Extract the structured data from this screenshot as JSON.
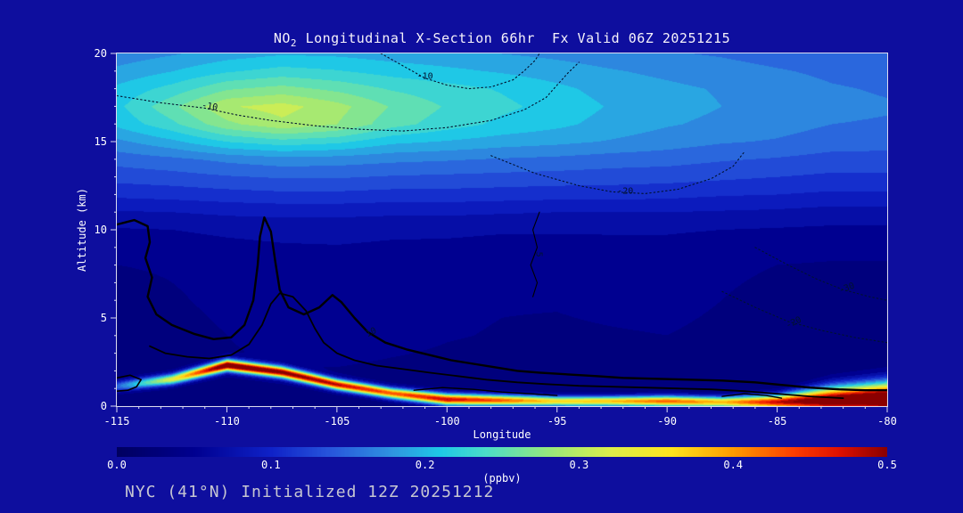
{
  "page": {
    "background": "#0e0e9e"
  },
  "title": {
    "prefix": "NO",
    "sub": "2",
    "rest": " Longitudinal X-Section 66hr  Fx Valid 06Z 20251215"
  },
  "footer": {
    "text": "NYC (41°N) Initialized 12Z 20251212"
  },
  "colors": {
    "frame": "#dcdcf0",
    "axis_text": "#ffffff",
    "title_text": "#f6f2fa",
    "footer_text": "#c6c6d2",
    "contour_solid": "#000000",
    "contour_dotted": "#001230",
    "contour_label": "#001230"
  },
  "chart_data": {
    "type": "heatmap",
    "title": "NO2 Longitudinal X-Section 66hr  Fx Valid 06Z 20251215",
    "xlabel": "Longitude",
    "ylabel": "Altitude (km)",
    "x_range": [
      -115,
      -80
    ],
    "y_range": [
      0,
      20
    ],
    "x_ticks": [
      -115,
      -110,
      -105,
      -100,
      -95,
      -90,
      -85,
      -80
    ],
    "y_ticks": [
      0,
      5,
      10,
      15,
      20
    ],
    "x_minor_step": 1,
    "y_minor_step": 1,
    "colorbar": {
      "min": 0.0,
      "max": 0.5,
      "tick_labels": [
        "0.0",
        "0.1",
        "0.2",
        "0.3",
        "0.4",
        "0.5"
      ],
      "unit_label": "(ppbv)"
    },
    "colormap": [
      [
        0.0,
        "#000060"
      ],
      [
        0.05,
        "#000090"
      ],
      [
        0.1,
        "#0f22c8"
      ],
      [
        0.14,
        "#2858dc"
      ],
      [
        0.18,
        "#2f96e0"
      ],
      [
        0.21,
        "#1ec8e6"
      ],
      [
        0.24,
        "#4cdcc8"
      ],
      [
        0.28,
        "#96e87d"
      ],
      [
        0.32,
        "#dcee4b"
      ],
      [
        0.36,
        "#ffe41e"
      ],
      [
        0.4,
        "#ff9c00"
      ],
      [
        0.44,
        "#ff3c00"
      ],
      [
        0.47,
        "#dc0f00"
      ],
      [
        0.5,
        "#8a0000"
      ]
    ],
    "quantize_step": 0.02,
    "field": {
      "lons": [
        -115,
        -112.5,
        -110,
        -107.5,
        -105,
        -102.5,
        -100,
        -97.5,
        -95,
        -92.5,
        -90,
        -87.5,
        -85,
        -82.5,
        -80
      ],
      "alts": [
        0,
        2,
        4,
        6,
        8,
        10,
        11,
        12,
        13,
        14,
        15,
        16,
        17,
        18,
        19,
        20
      ],
      "values": [
        [
          0.03,
          0.03,
          0.03,
          0.03,
          0.03,
          0.03,
          0.03,
          0.03,
          0.03,
          0.03,
          0.03,
          0.03,
          0.03,
          0.03,
          0.03
        ],
        [
          0.03,
          0.032,
          0.035,
          0.038,
          0.038,
          0.034,
          0.032,
          0.03,
          0.03,
          0.03,
          0.03,
          0.03,
          0.03,
          0.03,
          0.03
        ],
        [
          0.03,
          0.034,
          0.04,
          0.05,
          0.058,
          0.05,
          0.042,
          0.038,
          0.036,
          0.038,
          0.04,
          0.034,
          0.03,
          0.03,
          0.03
        ],
        [
          0.032,
          0.038,
          0.044,
          0.052,
          0.058,
          0.052,
          0.046,
          0.042,
          0.042,
          0.046,
          0.048,
          0.04,
          0.034,
          0.032,
          0.032
        ],
        [
          0.04,
          0.042,
          0.046,
          0.05,
          0.052,
          0.05,
          0.048,
          0.046,
          0.046,
          0.048,
          0.048,
          0.044,
          0.04,
          0.038,
          0.038
        ],
        [
          0.058,
          0.06,
          0.064,
          0.066,
          0.066,
          0.064,
          0.064,
          0.062,
          0.062,
          0.062,
          0.062,
          0.06,
          0.058,
          0.056,
          0.056
        ],
        [
          0.078,
          0.08,
          0.084,
          0.086,
          0.086,
          0.084,
          0.084,
          0.082,
          0.08,
          0.08,
          0.08,
          0.078,
          0.076,
          0.072,
          0.072
        ],
        [
          0.105,
          0.108,
          0.112,
          0.115,
          0.115,
          0.112,
          0.112,
          0.11,
          0.108,
          0.108,
          0.106,
          0.102,
          0.1,
          0.096,
          0.096
        ],
        [
          0.128,
          0.132,
          0.138,
          0.142,
          0.142,
          0.138,
          0.136,
          0.134,
          0.132,
          0.13,
          0.128,
          0.124,
          0.12,
          0.116,
          0.116
        ],
        [
          0.148,
          0.155,
          0.165,
          0.172,
          0.17,
          0.165,
          0.162,
          0.158,
          0.155,
          0.15,
          0.148,
          0.142,
          0.138,
          0.132,
          0.132
        ],
        [
          0.175,
          0.195,
          0.22,
          0.232,
          0.225,
          0.205,
          0.198,
          0.19,
          0.185,
          0.178,
          0.17,
          0.162,
          0.158,
          0.15,
          0.148
        ],
        [
          0.205,
          0.235,
          0.275,
          0.295,
          0.28,
          0.248,
          0.23,
          0.215,
          0.205,
          0.192,
          0.182,
          0.175,
          0.168,
          0.16,
          0.158
        ],
        [
          0.215,
          0.255,
          0.298,
          0.308,
          0.288,
          0.258,
          0.238,
          0.225,
          0.212,
          0.198,
          0.188,
          0.18,
          0.172,
          0.165,
          0.162
        ],
        [
          0.205,
          0.228,
          0.258,
          0.268,
          0.255,
          0.238,
          0.228,
          0.218,
          0.205,
          0.192,
          0.185,
          0.178,
          0.17,
          0.162,
          0.158
        ],
        [
          0.185,
          0.2,
          0.218,
          0.228,
          0.222,
          0.212,
          0.205,
          0.198,
          0.19,
          0.182,
          0.175,
          0.168,
          0.162,
          0.156,
          0.152
        ],
        [
          0.168,
          0.178,
          0.19,
          0.198,
          0.196,
          0.19,
          0.186,
          0.18,
          0.175,
          0.168,
          0.162,
          0.158,
          0.152,
          0.148,
          0.144
        ]
      ]
    },
    "surface": {
      "lons": [
        -115,
        -112.5,
        -110,
        -107.5,
        -105,
        -102.5,
        -100,
        -97.5,
        -95,
        -92.5,
        -90,
        -87.5,
        -85,
        -82.5,
        -80
      ],
      "terrain": [
        1.1,
        1.5,
        2.3,
        1.9,
        1.2,
        0.7,
        0.35,
        0.3,
        0.25,
        0.25,
        0.25,
        0.2,
        0.2,
        0.3,
        0.4
      ],
      "peak": [
        0.12,
        0.3,
        0.52,
        0.48,
        0.45,
        0.4,
        0.45,
        0.4,
        0.33,
        0.35,
        0.4,
        0.35,
        0.45,
        0.52,
        0.55
      ],
      "sigma": [
        0.3,
        0.3,
        0.32,
        0.32,
        0.3,
        0.3,
        0.32,
        0.3,
        0.28,
        0.28,
        0.3,
        0.3,
        0.4,
        0.75,
        0.9
      ]
    },
    "contours": {
      "solid": [
        {
          "width": 2.4,
          "points": [
            [
              -115,
              10.3
            ],
            [
              -114.2,
              10.55
            ],
            [
              -113.6,
              10.2
            ],
            [
              -113.5,
              9.3
            ],
            [
              -113.7,
              8.4
            ],
            [
              -113.4,
              7.3
            ],
            [
              -113.6,
              6.2
            ],
            [
              -113.2,
              5.2
            ],
            [
              -112.5,
              4.6
            ],
            [
              -111.5,
              4.1
            ],
            [
              -110.6,
              3.8
            ],
            [
              -109.8,
              3.9
            ],
            [
              -109.2,
              4.6
            ],
            [
              -108.8,
              6
            ],
            [
              -108.6,
              8
            ],
            [
              -108.5,
              9.6
            ],
            [
              -108.3,
              10.7
            ],
            [
              -108,
              9.9
            ],
            [
              -107.8,
              8.2
            ],
            [
              -107.6,
              6.6
            ],
            [
              -107.2,
              5.6
            ],
            [
              -106.5,
              5.2
            ],
            [
              -105.8,
              5.6
            ],
            [
              -105.2,
              6.3
            ],
            [
              -104.8,
              5.9
            ],
            [
              -104.2,
              5
            ],
            [
              -103.6,
              4.2
            ],
            [
              -102.8,
              3.6
            ],
            [
              -101.8,
              3.2
            ],
            [
              -100.8,
              2.9
            ],
            [
              -99.8,
              2.6
            ],
            [
              -98.8,
              2.4
            ],
            [
              -97.8,
              2.2
            ],
            [
              -96.8,
              2
            ],
            [
              -95.8,
              1.9
            ],
            [
              -94.5,
              1.8
            ],
            [
              -93.2,
              1.7
            ],
            [
              -92,
              1.6
            ],
            [
              -90.5,
              1.55
            ],
            [
              -89,
              1.5
            ],
            [
              -87.5,
              1.45
            ],
            [
              -86,
              1.35
            ],
            [
              -84.8,
              1.2
            ],
            [
              -83.5,
              1.05
            ],
            [
              -82.2,
              0.95
            ],
            [
              -81,
              0.9
            ],
            [
              -80,
              0.9
            ]
          ]
        },
        {
          "width": 1.8,
          "points": [
            [
              -113.5,
              3.4
            ],
            [
              -112.8,
              3
            ],
            [
              -111.8,
              2.8
            ],
            [
              -110.8,
              2.7
            ],
            [
              -109.8,
              2.9
            ],
            [
              -109,
              3.5
            ],
            [
              -108.4,
              4.6
            ],
            [
              -108,
              5.8
            ],
            [
              -107.6,
              6.4
            ],
            [
              -107,
              6.2
            ],
            [
              -106.4,
              5.4
            ],
            [
              -106,
              4.4
            ],
            [
              -105.6,
              3.6
            ],
            [
              -105,
              3
            ],
            [
              -104.2,
              2.6
            ],
            [
              -103.2,
              2.3
            ],
            [
              -102,
              2.1
            ],
            [
              -100.8,
              1.9
            ],
            [
              -99.5,
              1.7
            ],
            [
              -98.2,
              1.5
            ],
            [
              -96.8,
              1.35
            ],
            [
              -95.5,
              1.25
            ],
            [
              -94,
              1.15
            ],
            [
              -92.5,
              1.1
            ],
            [
              -91,
              1.05
            ],
            [
              -89.5,
              1
            ],
            [
              -88,
              0.95
            ],
            [
              -86.5,
              0.85
            ],
            [
              -85,
              0.7
            ],
            [
              -83.5,
              0.55
            ],
            [
              -82,
              0.45
            ]
          ]
        },
        {
          "width": 1.6,
          "points": [
            [
              -115,
              1.6
            ],
            [
              -114.4,
              1.75
            ],
            [
              -113.9,
              1.5
            ],
            [
              -114.1,
              1.1
            ],
            [
              -114.5,
              0.9
            ],
            [
              -115,
              0.85
            ]
          ]
        },
        {
          "width": 1.4,
          "points": [
            [
              -101.5,
              0.9
            ],
            [
              -100.2,
              1.05
            ],
            [
              -98.8,
              0.95
            ],
            [
              -97.5,
              0.8
            ],
            [
              -96.2,
              0.7
            ],
            [
              -95,
              0.6
            ]
          ]
        },
        {
          "width": 1.4,
          "points": [
            [
              -87.5,
              0.55
            ],
            [
              -86.5,
              0.7
            ],
            [
              -85.5,
              0.6
            ],
            [
              -84.8,
              0.45
            ]
          ]
        },
        {
          "width": 1.1,
          "points": [
            [
              -95.8,
              11
            ],
            [
              -96.1,
              10
            ],
            [
              -95.9,
              9
            ],
            [
              -96.2,
              8
            ],
            [
              -95.9,
              7
            ],
            [
              -96.1,
              6.2
            ]
          ]
        }
      ],
      "dotted": [
        {
          "points": [
            [
              -115,
              17.6
            ],
            [
              -113,
              17.2
            ],
            [
              -111,
              16.9
            ],
            [
              -109.5,
              16.5
            ],
            [
              -108,
              16.2
            ],
            [
              -106,
              15.9
            ],
            [
              -104,
              15.7
            ],
            [
              -102,
              15.6
            ],
            [
              -100,
              15.8
            ],
            [
              -98,
              16.2
            ],
            [
              -96.5,
              16.8
            ],
            [
              -95.5,
              17.5
            ],
            [
              -95,
              18.2
            ],
            [
              -94.5,
              18.9
            ],
            [
              -94,
              19.5
            ]
          ]
        },
        {
          "points": [
            [
              -103,
              20
            ],
            [
              -102,
              19.3
            ],
            [
              -101,
              18.6
            ],
            [
              -100,
              18.2
            ],
            [
              -99,
              18
            ],
            [
              -98,
              18.1
            ],
            [
              -97,
              18.5
            ],
            [
              -96.5,
              19
            ],
            [
              -96,
              19.6
            ],
            [
              -95.8,
              20
            ]
          ]
        },
        {
          "points": [
            [
              -98,
              14.2
            ],
            [
              -96,
              13.2
            ],
            [
              -94,
              12.5
            ],
            [
              -92.5,
              12.15
            ],
            [
              -91,
              12.05
            ],
            [
              -89.5,
              12.3
            ],
            [
              -88,
              12.9
            ],
            [
              -87,
              13.6
            ],
            [
              -86.5,
              14.4
            ]
          ]
        },
        {
          "points": [
            [
              -86,
              9
            ],
            [
              -84.5,
              8
            ],
            [
              -83.2,
              7.2
            ],
            [
              -82,
              6.6
            ],
            [
              -80.8,
              6.2
            ],
            [
              -80,
              6
            ]
          ]
        },
        {
          "points": [
            [
              -87.5,
              6.5
            ],
            [
              -86,
              5.6
            ],
            [
              -84.5,
              4.8
            ],
            [
              -83,
              4.3
            ],
            [
              -81.5,
              3.9
            ],
            [
              -80,
              3.6
            ]
          ]
        }
      ],
      "labels": [
        {
          "text": "-10",
          "lon": -110.8,
          "alt": 16.85,
          "rot": 10
        },
        {
          "text": "-10",
          "lon": -101,
          "alt": 18.55,
          "rot": 0
        },
        {
          "text": "-20",
          "lon": -91.9,
          "alt": 12.05,
          "rot": 0
        },
        {
          "text": "-30",
          "lon": -81.8,
          "alt": 6.55,
          "rot": -20
        },
        {
          "text": "-20",
          "lon": -84.2,
          "alt": 4.6,
          "rot": -25
        },
        {
          "text": "5",
          "lon": -95.95,
          "alt": 8.6,
          "rot": 90
        },
        {
          "text": "10",
          "lon": -103.4,
          "alt": 4.05,
          "rot": -25
        }
      ]
    }
  }
}
